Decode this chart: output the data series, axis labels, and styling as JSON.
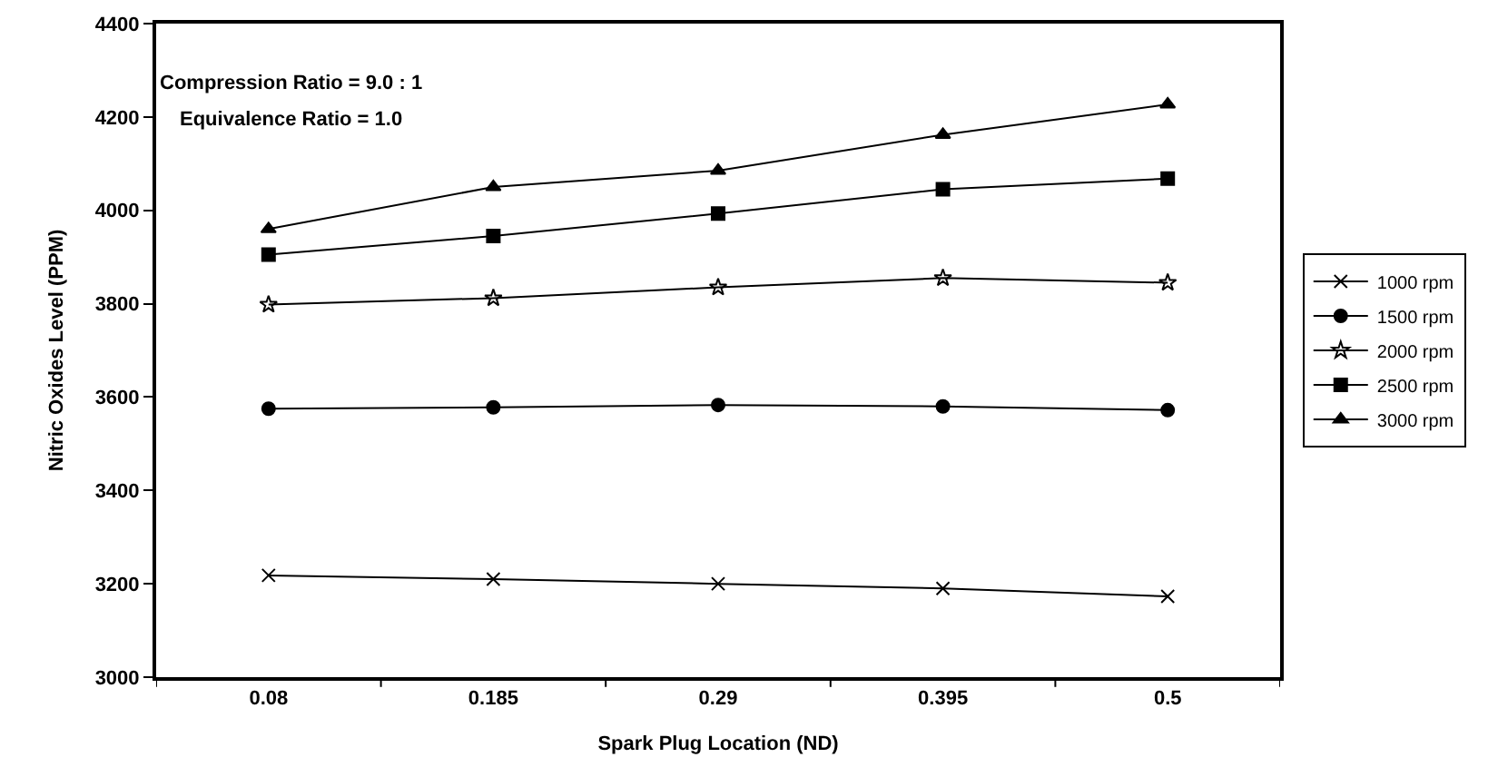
{
  "chart_data": {
    "type": "line",
    "xlabel": "Spark Plug Location (ND)",
    "ylabel": "Nitric Oxides Level (PPM)",
    "categories": [
      "0.08",
      "0.185",
      "0.29",
      "0.395",
      "0.5"
    ],
    "ylim": [
      3000,
      4400
    ],
    "yticks": [
      3000,
      3200,
      3400,
      3600,
      3800,
      4000,
      4200,
      4400
    ],
    "grid": false,
    "legend": "right",
    "line_style": "solid",
    "annotations": [
      "Compression Ratio = 9.0 : 1",
      "Equivalence Ratio = 1.0"
    ],
    "series": [
      {
        "name": "1000 rpm",
        "color": "#000000",
        "marker": "cross",
        "values": [
          3218,
          3210,
          3200,
          3190,
          3173
        ]
      },
      {
        "name": "1500 rpm",
        "color": "#000000",
        "marker": "circle",
        "values": [
          3575,
          3578,
          3583,
          3580,
          3572
        ]
      },
      {
        "name": "2000 rpm",
        "color": "#000000",
        "marker": "star",
        "values": [
          3798,
          3812,
          3835,
          3855,
          3845
        ]
      },
      {
        "name": "2500 rpm",
        "color": "#000000",
        "marker": "square",
        "values": [
          3905,
          3945,
          3993,
          4045,
          4068
        ]
      },
      {
        "name": "3000 rpm",
        "color": "#000000",
        "marker": "triangle",
        "values": [
          3960,
          4050,
          4085,
          4162,
          4227
        ]
      }
    ]
  }
}
